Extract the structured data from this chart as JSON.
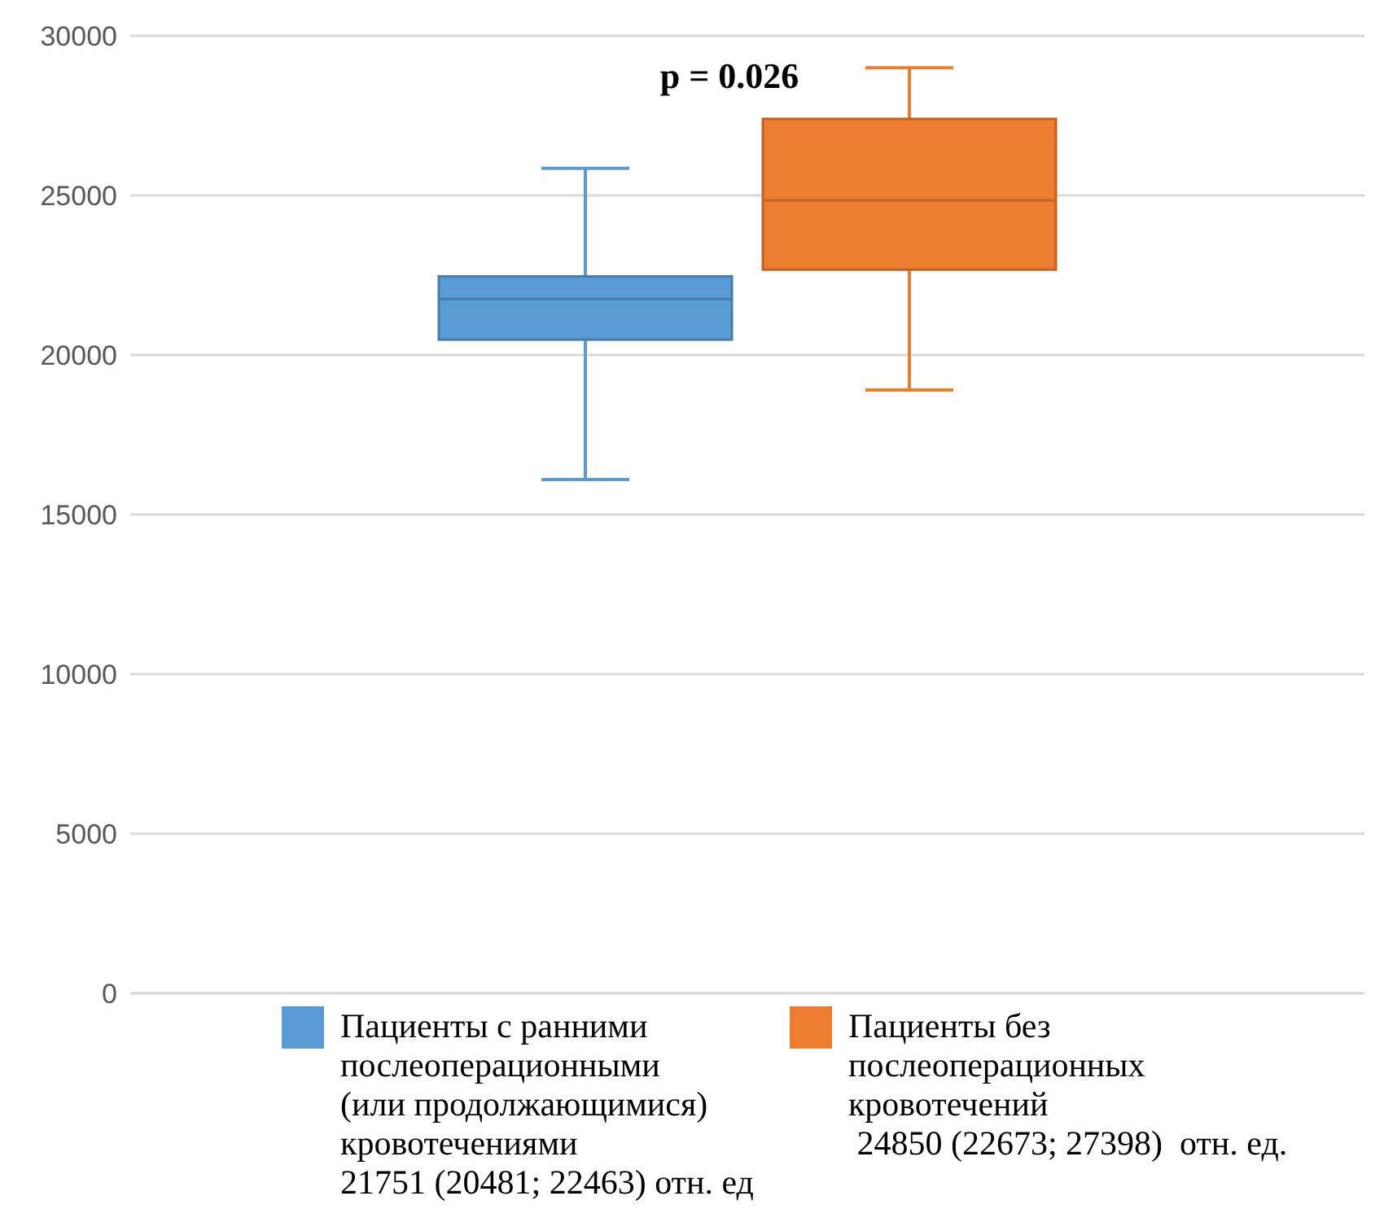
{
  "chart_data": {
    "type": "box",
    "categories": [
      null
    ],
    "series": [
      {
        "name": "Пациенты с ранними\nпослеоперационными\n(или продолжающимися)\nкровотечениями\n21751 (20481; 22463) отн. ед",
        "color": "#5b9bd5",
        "boxes": [
          {
            "low": 16100,
            "q1": 20481,
            "median": 21751,
            "q3": 22463,
            "high": 25850
          }
        ]
      },
      {
        "name": "Пациенты без\nпослеоперационных\nкровотечений\n 24850 (22673; 27398)  отн. ед.",
        "color": "#ed7d31",
        "boxes": [
          {
            "low": 18900,
            "q1": 22673,
            "median": 24850,
            "q3": 27398,
            "high": 29000
          }
        ]
      }
    ],
    "ylim": [
      0,
      30000
    ],
    "yticks": [
      0,
      5000,
      10000,
      15000,
      20000,
      25000,
      30000
    ],
    "grid": "y",
    "legend": "bottom",
    "annotations": [
      "p = 0.026"
    ]
  }
}
